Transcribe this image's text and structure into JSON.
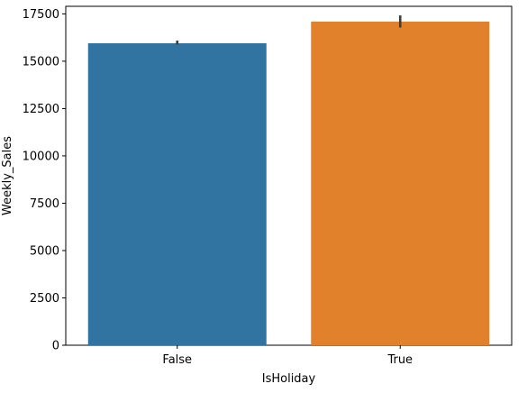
{
  "chart_data": {
    "type": "bar",
    "title": "",
    "xlabel": "IsHoliday",
    "ylabel": "Weekly_Sales",
    "categories": [
      "False",
      "True"
    ],
    "values": [
      15950,
      17090
    ],
    "error_low": [
      15880,
      16780
    ],
    "error_high": [
      16090,
      17420
    ],
    "colors": [
      "#3274a1",
      "#e1812c"
    ],
    "ylim": [
      0,
      17900
    ],
    "yticks": [
      0,
      2500,
      5000,
      7500,
      10000,
      12500,
      15000,
      17500
    ],
    "ytick_labels": [
      "0",
      "2500",
      "5000",
      "7500",
      "10000",
      "12500",
      "15000",
      "17500"
    ],
    "grid": false,
    "legend": "none"
  }
}
